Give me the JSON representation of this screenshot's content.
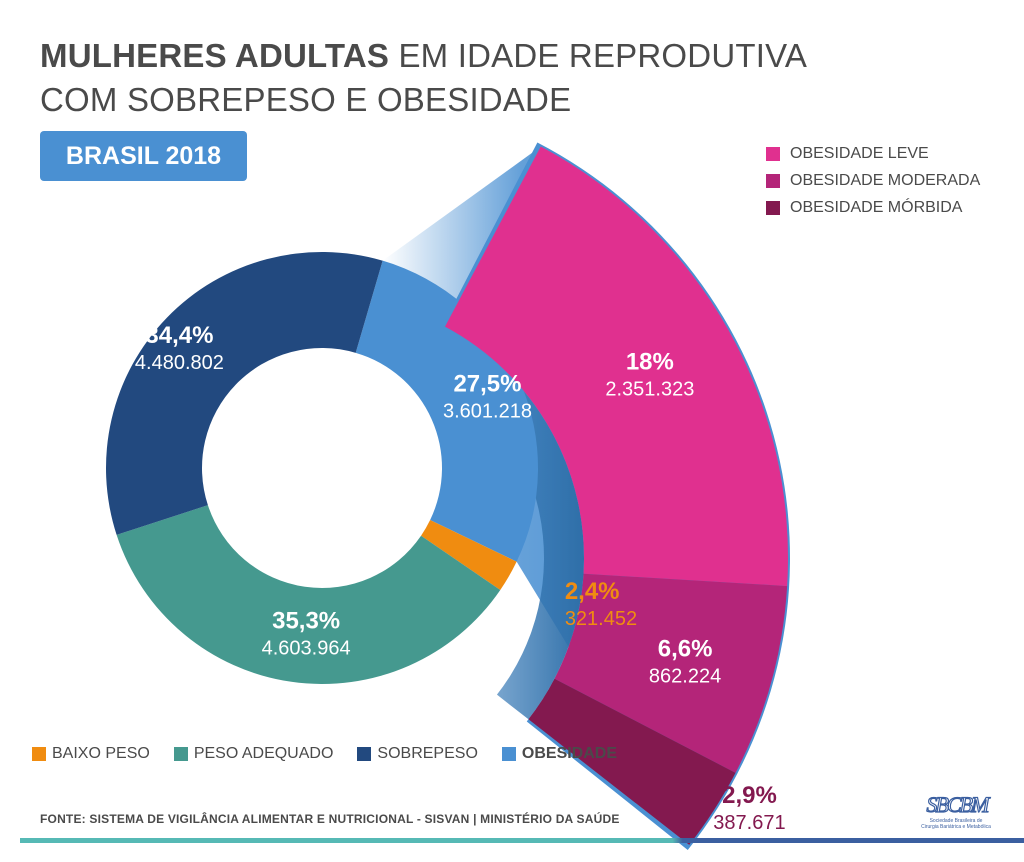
{
  "title": {
    "line1_bold": "MULHERES ADULTAS",
    "line1_rest": " EM IDADE REPRODUTIVA",
    "line2": "COM SOBREPESO E OBESIDADE"
  },
  "badge": "BRASIL 2018",
  "chart_data": [
    {
      "type": "donut",
      "title": "MULHERES ADULTAS EM IDADE REPRODUTIVA COM SOBREPESO E OBESIDADE",
      "categories": [
        "BAIXO PESO",
        "PESO ADEQUADO",
        "SOBREPESO",
        "OBESIDADE"
      ],
      "percent_labels": [
        "2,4%",
        "35,3%",
        "34,4%",
        "27,5%"
      ],
      "values": [
        2.4,
        35.3,
        34.4,
        27.5
      ],
      "counts": [
        "321.452",
        "4.603.964",
        "4.480.802",
        "3.601.218"
      ],
      "colors": [
        "#f08c10",
        "#45998f",
        "#22497f",
        "#4a90d2"
      ]
    },
    {
      "type": "bar",
      "subtitle": "OBESIDADE",
      "categories": [
        "OBESIDADE LEVE",
        "OBESIDADE MODERADA",
        "OBESIDADE MÓRBIDA"
      ],
      "percent_labels": [
        "18%",
        "6,6%",
        "2,9%"
      ],
      "values": [
        18,
        6.6,
        2.9
      ],
      "counts": [
        "2.351.323",
        "862.224",
        "387.671"
      ],
      "colors": [
        "#e0308f",
        "#b42579",
        "#83194f"
      ]
    }
  ],
  "legend_bottom": [
    "BAIXO PESO",
    "PESO ADEQUADO",
    "SOBREPESO",
    "OBESIDADE"
  ],
  "legend_right": [
    "OBESIDADE LEVE",
    "OBESIDADE MODERADA",
    "OBESIDADE MÓRBIDA"
  ],
  "footer": "FONTE: SISTEMA DE VIGILÂNCIA ALIMENTAR E NUTRICIONAL - SISVAN | MINISTÉRIO DA SAÚDE",
  "logo": {
    "mark": "SBCBM",
    "text_line1": "Sociedade Brasileira de",
    "text_line2": "Cirurgia Bariátrica e Metabólica"
  }
}
